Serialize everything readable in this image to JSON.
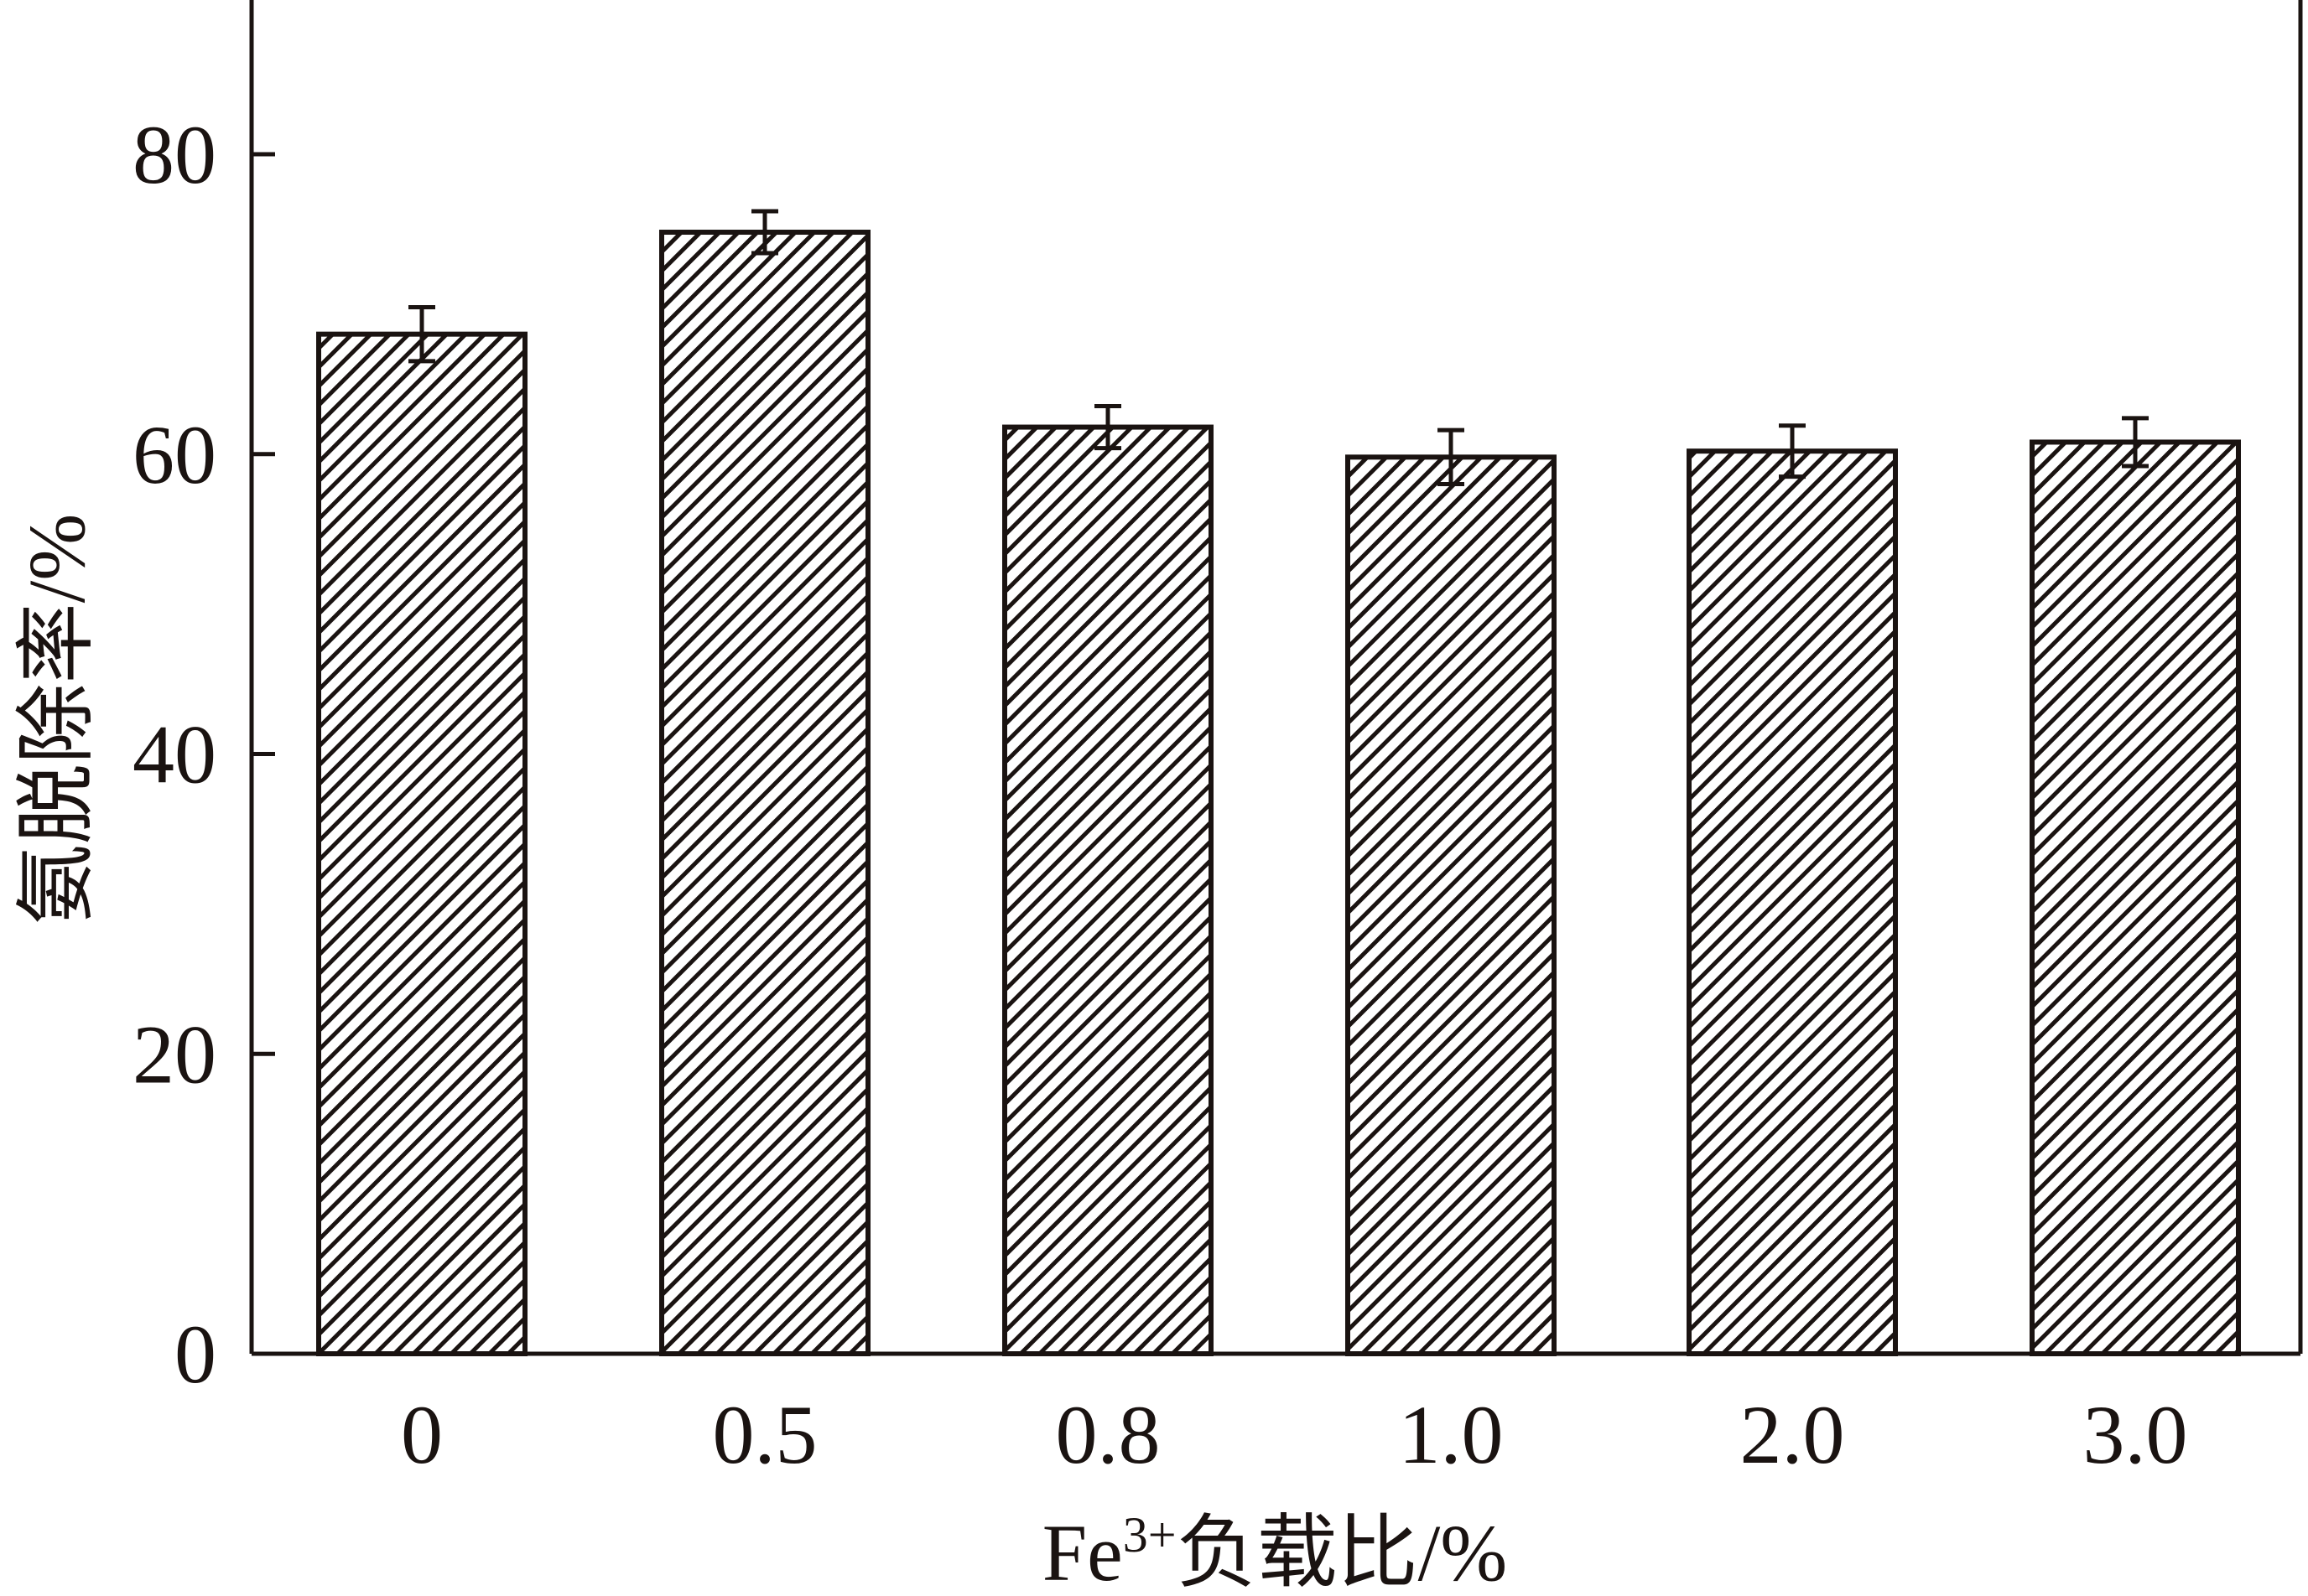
{
  "chart_data": {
    "type": "bar",
    "title": "",
    "xlabel": "Fe³⁺负载比/%",
    "xlabel_parts": {
      "base": "Fe",
      "superscript": "3+",
      "rest": "负载比/%"
    },
    "ylabel": "氨脱除率/%",
    "categories": [
      "0",
      "0.5",
      "0.8",
      "1.0",
      "2.0",
      "3.0"
    ],
    "values": [
      68.0,
      74.8,
      61.8,
      59.8,
      60.2,
      60.8
    ],
    "errors": [
      1.8,
      1.4,
      1.4,
      1.8,
      1.7,
      1.6
    ],
    "ylim": [
      0,
      90
    ],
    "yticks": [
      "0",
      "20",
      "40",
      "60",
      "80"
    ],
    "grid": false,
    "legend": "none",
    "bar_pattern": "diagonal-hatch",
    "colors": {
      "ink": "#1a1311",
      "background": "#ffffff"
    }
  }
}
